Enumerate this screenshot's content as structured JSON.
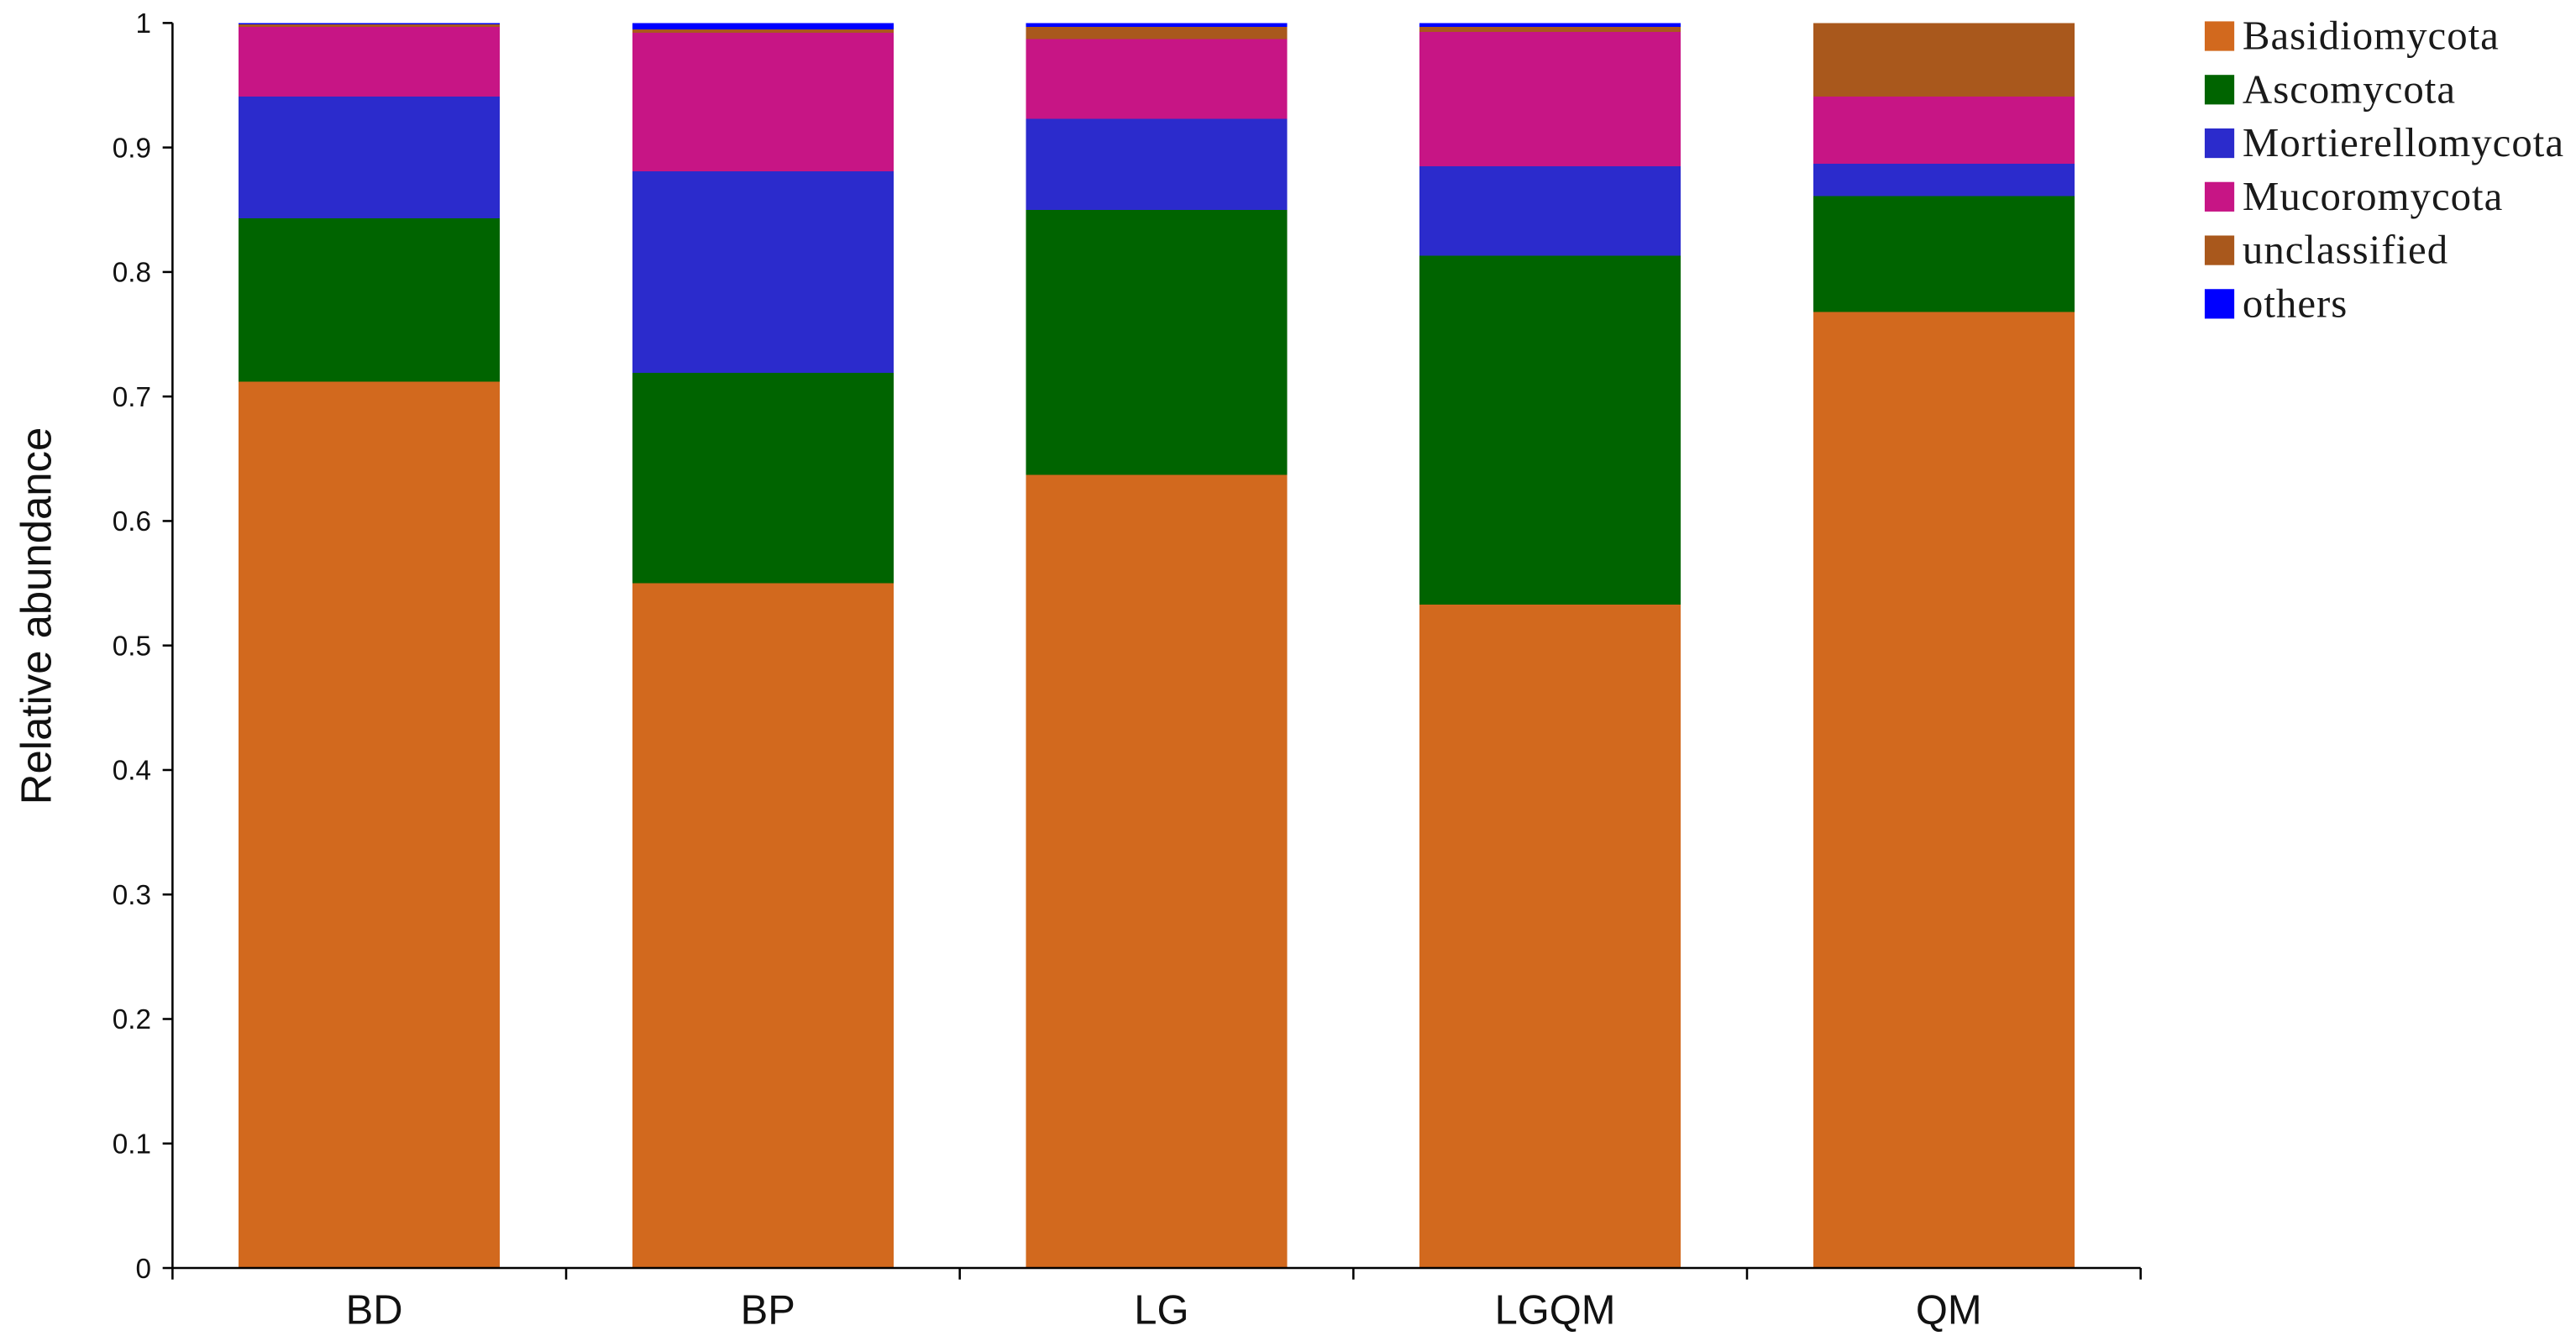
{
  "chart_data": {
    "type": "bar",
    "stacked": true,
    "categories": [
      "BD",
      "BP",
      "LG",
      "LGQM",
      "QM"
    ],
    "series": [
      {
        "name": "Basidiomycota",
        "color": "#D2691E",
        "values": [
          0.712,
          0.55,
          0.637,
          0.533,
          0.768
        ]
      },
      {
        "name": "Ascomycota",
        "color": "#006400",
        "values": [
          0.131,
          0.169,
          0.213,
          0.28,
          0.093
        ]
      },
      {
        "name": "Mortierellomycota",
        "color": "#2B2BCC",
        "values": [
          0.098,
          0.162,
          0.073,
          0.072,
          0.026
        ]
      },
      {
        "name": "Mucoromycota",
        "color": "#C71585",
        "values": [
          0.056,
          0.111,
          0.064,
          0.108,
          0.054
        ]
      },
      {
        "name": "unclassified",
        "color": "#A9581C",
        "values": [
          0.002,
          0.003,
          0.01,
          0.004,
          0.059
        ]
      },
      {
        "name": "others",
        "color": "#0000FF",
        "values": [
          0.001,
          0.005,
          0.003,
          0.003,
          0.0
        ]
      }
    ],
    "ylabel": "Relative abundance",
    "ylim": [
      0,
      1
    ],
    "yticks": [
      0,
      0.1,
      0.2,
      0.3,
      0.4,
      0.5,
      0.6,
      0.7,
      0.8,
      0.9,
      1
    ],
    "ytick_labels": [
      "0",
      "0.1",
      "0.2",
      "0.3",
      "0.4",
      "0.5",
      "0.6",
      "0.7",
      "0.8",
      "0.9",
      "1"
    ],
    "grid": false,
    "legend_position": "top-right"
  }
}
